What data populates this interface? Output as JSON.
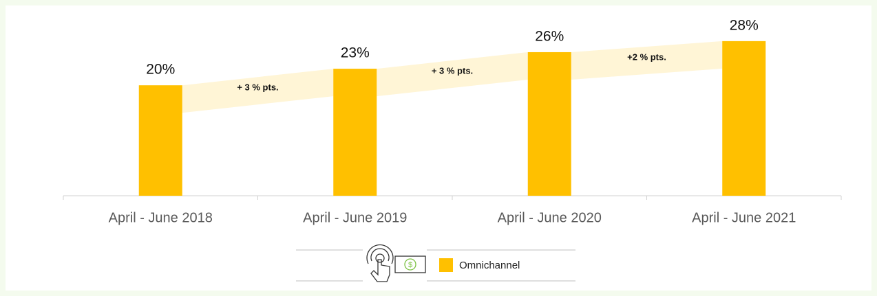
{
  "chart_data": {
    "type": "bar",
    "categories": [
      "April - June 2018",
      "April - June 2019",
      "April - June 2020",
      "April - June 2021"
    ],
    "values": [
      20,
      23,
      26,
      28
    ],
    "value_labels": [
      "20%",
      "23%",
      "26%",
      "28%"
    ],
    "annotations": [
      "+ 3 % pts.",
      "+ 3 % pts.",
      "+2 % pts."
    ],
    "legend": [
      "Omnichannel"
    ],
    "color": "#ffc000",
    "ylim": [
      0,
      35
    ]
  }
}
